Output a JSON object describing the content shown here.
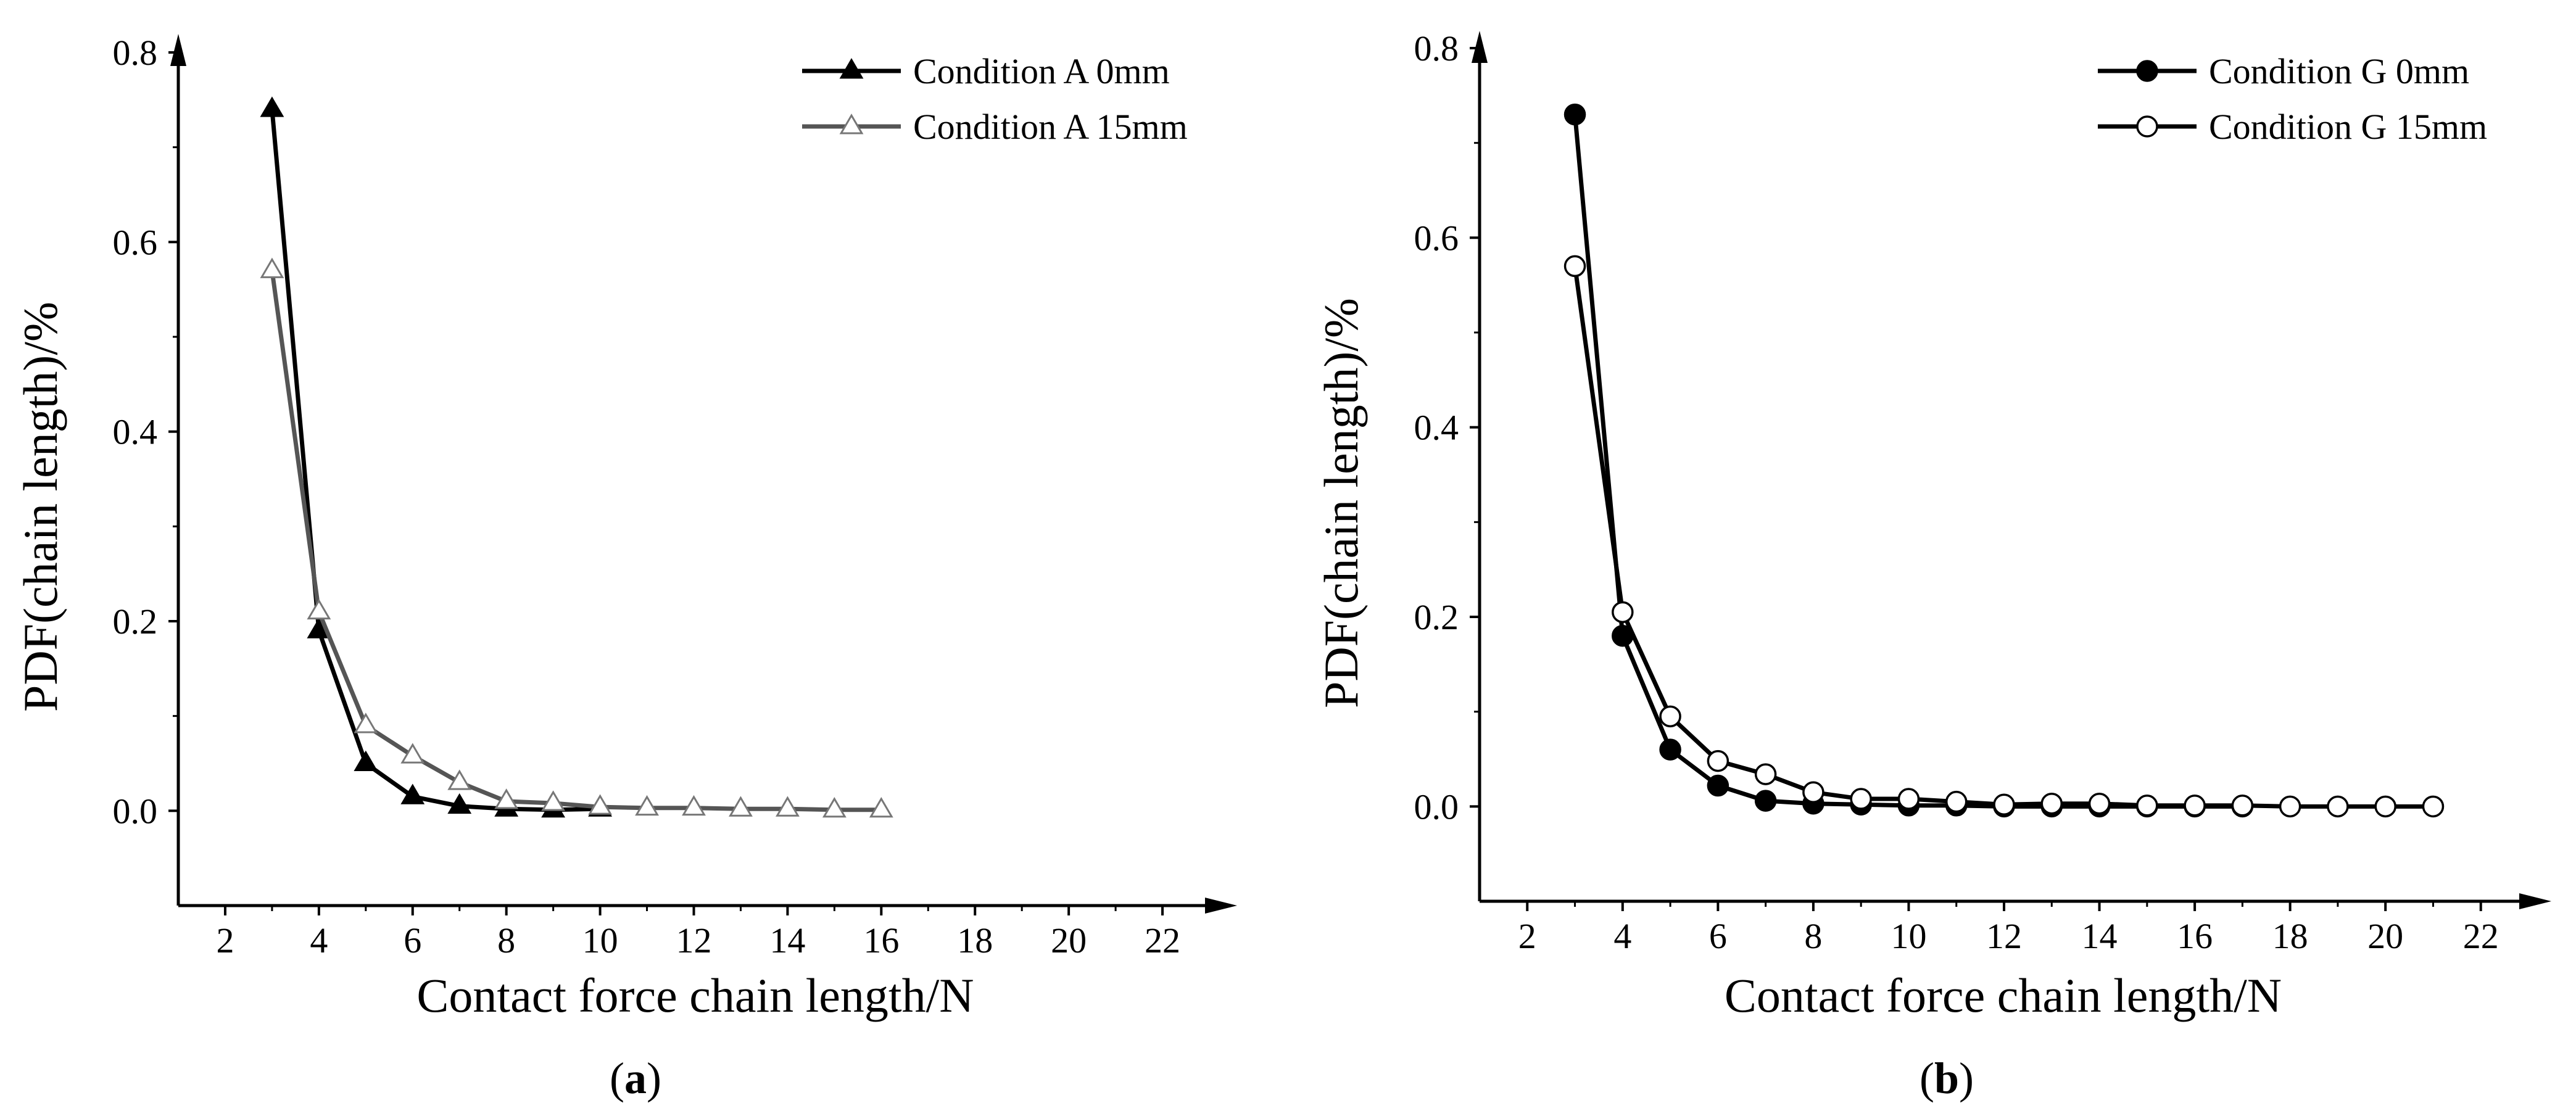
{
  "chart_data": [
    {
      "type": "line",
      "panel_label": "(a)",
      "panel_label_prefix": "(",
      "panel_label_letter": "a",
      "panel_label_suffix": ")",
      "title": "",
      "xlabel": "Contact force chain length/N",
      "ylabel": "PDF(chain length)/%",
      "xlim": [
        1,
        23
      ],
      "ylim": [
        -0.1,
        0.8
      ],
      "xticks": [
        2,
        4,
        6,
        8,
        10,
        12,
        14,
        16,
        18,
        20,
        22
      ],
      "yticks": [
        0.0,
        0.2,
        0.4,
        0.6,
        0.8
      ],
      "xtick_labels": [
        "2",
        "4",
        "6",
        "8",
        "10",
        "12",
        "14",
        "16",
        "18",
        "20",
        "22"
      ],
      "ytick_labels": [
        "0.0",
        "0.2",
        "0.4",
        "0.6",
        "0.8"
      ],
      "grid": false,
      "legend_position": "top-right",
      "series": [
        {
          "name": "Condition A 0mm",
          "marker": "triangle-filled",
          "color": "#000000",
          "x": [
            3,
            4,
            5,
            6,
            7,
            8,
            9,
            10
          ],
          "y": [
            0.74,
            0.19,
            0.05,
            0.015,
            0.005,
            0.002,
            0.001,
            0.002
          ]
        },
        {
          "name": "Condition A 15mm",
          "marker": "triangle-open",
          "color": "#555555",
          "x": [
            3,
            4,
            5,
            6,
            7,
            8,
            9,
            10,
            11,
            12,
            13,
            14,
            15,
            16
          ],
          "y": [
            0.57,
            0.21,
            0.09,
            0.058,
            0.03,
            0.01,
            0.008,
            0.004,
            0.003,
            0.003,
            0.002,
            0.002,
            0.001,
            0.001
          ]
        }
      ]
    },
    {
      "type": "line",
      "panel_label": "(b)",
      "panel_label_prefix": "(",
      "panel_label_letter": "b",
      "panel_label_suffix": ")",
      "title": "",
      "xlabel": "Contact force chain length/N",
      "ylabel": "PDF(chain length)/%",
      "xlim": [
        1,
        23
      ],
      "ylim": [
        -0.1,
        0.8
      ],
      "xticks": [
        2,
        4,
        6,
        8,
        10,
        12,
        14,
        16,
        18,
        20,
        22
      ],
      "yticks": [
        0.0,
        0.2,
        0.4,
        0.6,
        0.8
      ],
      "xtick_labels": [
        "2",
        "4",
        "6",
        "8",
        "10",
        "12",
        "14",
        "16",
        "18",
        "20",
        "22"
      ],
      "ytick_labels": [
        "0.0",
        "0.2",
        "0.4",
        "0.6",
        "0.8"
      ],
      "grid": false,
      "legend_position": "top-right",
      "series": [
        {
          "name": "Condition G 0mm",
          "marker": "circle-filled",
          "color": "#000000",
          "x": [
            3,
            4,
            5,
            6,
            7,
            8,
            9,
            10,
            11,
            12,
            13,
            14,
            15,
            16,
            17
          ],
          "y": [
            0.73,
            0.18,
            0.06,
            0.022,
            0.006,
            0.003,
            0.002,
            0.001,
            0.001,
            0.0,
            0.0,
            0.0,
            0.0,
            0.0,
            0.0
          ]
        },
        {
          "name": "Condition G 15mm",
          "marker": "circle-open",
          "color": "#000000",
          "x": [
            3,
            4,
            5,
            6,
            7,
            8,
            9,
            10,
            11,
            12,
            13,
            14,
            15,
            16,
            17,
            18,
            19,
            20,
            21
          ],
          "y": [
            0.57,
            0.205,
            0.095,
            0.048,
            0.034,
            0.015,
            0.008,
            0.008,
            0.005,
            0.002,
            0.003,
            0.003,
            0.001,
            0.001,
            0.001,
            0.0,
            0.0,
            0.0,
            0.0
          ]
        }
      ]
    }
  ]
}
